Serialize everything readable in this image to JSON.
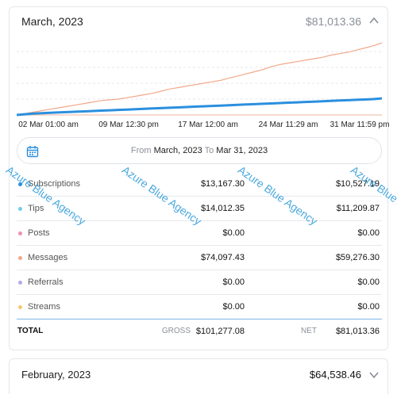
{
  "current_month": {
    "title": "March, 2023",
    "net_total": "$81,013.36",
    "chart_data": {
      "type": "line",
      "x_tick_labels": [
        "02 Mar 01:00 am",
        "09 Mar 12:30 pm",
        "17 Mar 12:00 am",
        "24 Mar 11:29 am",
        "31 Mar 11:59 pm"
      ],
      "series": [
        {
          "color": "#f2a88a",
          "values": [
            0,
            2,
            4,
            6,
            8,
            10,
            12,
            14,
            16,
            18,
            20,
            21,
            22,
            24,
            26,
            28,
            30,
            33,
            36,
            38,
            40,
            42,
            44,
            46,
            48,
            51,
            54,
            57,
            60,
            63,
            67,
            70,
            72,
            74,
            76,
            78,
            80,
            83,
            85,
            87,
            90,
            93,
            96,
            100
          ]
        },
        {
          "color": "#2b8fde",
          "values": [
            0,
            1,
            2,
            2.5,
            3,
            3.5,
            4,
            4.5,
            5,
            5.5,
            6,
            6.5,
            7,
            7.5,
            8,
            8.5,
            9,
            9.5,
            10,
            10.5,
            11,
            11.5,
            12,
            12.5,
            13,
            13.5,
            14,
            14.5,
            15,
            15.5,
            16,
            16.5,
            17,
            17.5,
            18,
            18.5,
            19,
            19.5,
            20,
            20.5,
            21,
            21.5,
            22,
            23
          ]
        },
        {
          "color": "#f0c2b0",
          "values": [
            0,
            0,
            0,
            0,
            0,
            0,
            0,
            0,
            0,
            0,
            0,
            0,
            0,
            0,
            0,
            0,
            0,
            0,
            0,
            0,
            0,
            0,
            0,
            0,
            0,
            0,
            0,
            0,
            0,
            0,
            0,
            0,
            0,
            0,
            0,
            0,
            0,
            0,
            0,
            0,
            0,
            0,
            0,
            0
          ]
        }
      ],
      "ylim": [
        0,
        110
      ],
      "grid": true
    },
    "range": {
      "from_label": "From",
      "from_value": "March, 2023",
      "to_label": "To",
      "to_value": "Mar 31, 2023"
    },
    "rows": [
      {
        "label": "Subscriptions",
        "gross": "$13,167.30",
        "net": "$10,527.19",
        "color": "#2b8fde"
      },
      {
        "label": "Tips",
        "gross": "$14,012.35",
        "net": "$11,209.87",
        "color": "#6fd0e8"
      },
      {
        "label": "Posts",
        "gross": "$0.00",
        "net": "$0.00",
        "color": "#f28fb0"
      },
      {
        "label": "Messages",
        "gross": "$74,097.43",
        "net": "$59,276.30",
        "color": "#f2a88a"
      },
      {
        "label": "Referrals",
        "gross": "$0.00",
        "net": "$0.00",
        "color": "#b9a6ec"
      },
      {
        "label": "Streams",
        "gross": "$0.00",
        "net": "$0.00",
        "color": "#f5c870"
      }
    ],
    "totals": {
      "label": "TOTAL",
      "gross_label": "GROSS",
      "gross_value": "$101,277.08",
      "net_label": "NET",
      "net_value": "$81,013.36"
    }
  },
  "previous_month": {
    "title": "February, 2023",
    "net_total": "$64,538.46"
  },
  "watermark": {
    "text": "Azure Blue Agency",
    "color": "#2c9ad8"
  },
  "icons": {
    "calendar": "calendar-icon",
    "collapse": "chevron-up-icon",
    "expand": "chevron-down-icon"
  }
}
